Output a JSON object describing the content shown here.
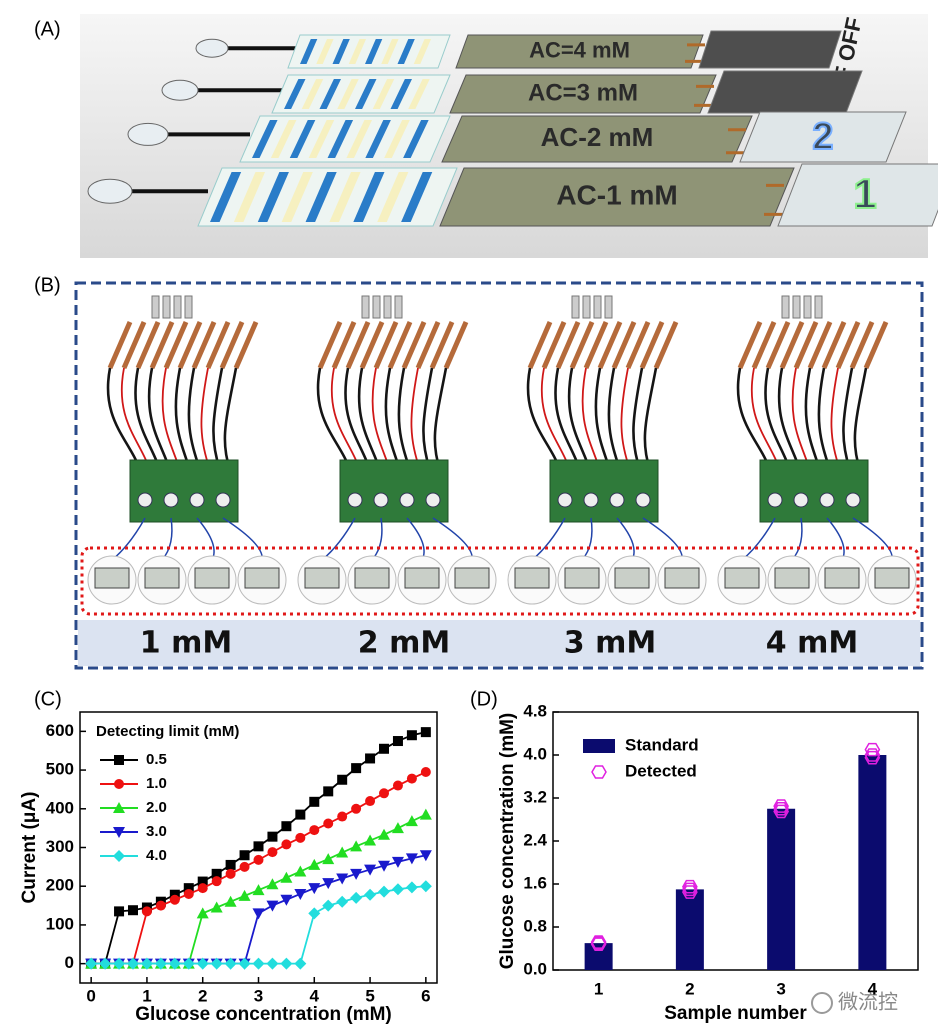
{
  "panel_a": {
    "letter": "(A)",
    "labels": [
      "AC=4 mM",
      "AC=3 mM",
      "AC-2 mM",
      "AC-1 mM"
    ],
    "switch": "OFF OFF",
    "digits": [
      "2",
      "1"
    ]
  },
  "panel_b": {
    "letter": "(B)",
    "labels": [
      "1 mM",
      "2 mM",
      "3 mM",
      "4 mM"
    ]
  },
  "panel_c": {
    "letter": "(C)"
  },
  "panel_d": {
    "letter": "(D)"
  },
  "watermark": "微流控",
  "chart_data": [
    {
      "type": "line",
      "xlabel": "Glucose concentration (mM)",
      "ylabel": "Current (μA)",
      "legend_title": "Detecting limit (mM)",
      "legend": "upper left",
      "x": [
        0,
        0.25,
        0.5,
        0.75,
        1,
        1.25,
        1.5,
        1.75,
        2,
        2.25,
        2.5,
        2.75,
        3,
        3.25,
        3.5,
        3.75,
        4,
        4.25,
        4.5,
        4.75,
        5,
        5.25,
        5.5,
        5.75,
        6
      ],
      "series": [
        {
          "name": "0.5",
          "color": "#000000",
          "marker": "square",
          "values": [
            0,
            0,
            135,
            138,
            145,
            160,
            178,
            195,
            212,
            232,
            255,
            280,
            303,
            328,
            355,
            385,
            418,
            445,
            475,
            505,
            530,
            555,
            575,
            590,
            598
          ]
        },
        {
          "name": "1.0",
          "color": "#ee1111",
          "marker": "circle",
          "values": [
            0,
            0,
            0,
            0,
            135,
            150,
            165,
            180,
            195,
            213,
            232,
            250,
            268,
            288,
            308,
            325,
            345,
            362,
            380,
            400,
            420,
            440,
            460,
            478,
            495
          ]
        },
        {
          "name": "2.0",
          "color": "#22dd22",
          "marker": "triangle-up",
          "values": [
            0,
            0,
            0,
            0,
            0,
            0,
            0,
            0,
            130,
            145,
            160,
            175,
            190,
            205,
            222,
            238,
            255,
            270,
            287,
            303,
            318,
            333,
            350,
            368,
            385
          ]
        },
        {
          "name": "3.0",
          "color": "#1a1acc",
          "marker": "triangle-down",
          "values": [
            0,
            0,
            0,
            0,
            0,
            0,
            0,
            0,
            0,
            0,
            0,
            0,
            130,
            150,
            165,
            180,
            195,
            208,
            220,
            232,
            243,
            253,
            263,
            272,
            280
          ]
        },
        {
          "name": "4.0",
          "color": "#22dddd",
          "marker": "diamond",
          "values": [
            0,
            0,
            0,
            0,
            0,
            0,
            0,
            0,
            0,
            0,
            0,
            0,
            0,
            0,
            0,
            0,
            130,
            150,
            160,
            170,
            178,
            186,
            192,
            197,
            200
          ]
        }
      ],
      "xlim": [
        -0.2,
        6.2
      ],
      "ylim": [
        -50,
        650
      ],
      "xticks": [
        0,
        1,
        2,
        3,
        4,
        5,
        6
      ],
      "yticks": [
        0,
        100,
        200,
        300,
        400,
        500,
        600
      ]
    },
    {
      "type": "bar",
      "xlabel": "Sample number",
      "ylabel": "Glucose concentration (mM)",
      "legend": "upper left",
      "categories": [
        "1",
        "2",
        "3",
        "4"
      ],
      "series": [
        {
          "name": "Standard",
          "color": "#0b0b6e",
          "values": [
            0.5,
            1.5,
            3.0,
            4.0
          ]
        },
        {
          "name": "Detected",
          "color": "#e020e0",
          "marker": "hexagon",
          "values": [
            [
              0.52,
              0.5,
              0.48
            ],
            [
              1.55,
              1.5,
              1.45
            ],
            [
              3.05,
              3.0,
              2.95
            ],
            [
              4.1,
              4.0,
              3.95
            ]
          ]
        }
      ],
      "ylim": [
        0,
        4.8
      ],
      "yticks": [
        {
          "value": 0,
          "label": "0.0"
        },
        0.8,
        1.6,
        2.4,
        3.2,
        {
          "value": 4,
          "label": "4.0"
        },
        4.8
      ]
    }
  ]
}
